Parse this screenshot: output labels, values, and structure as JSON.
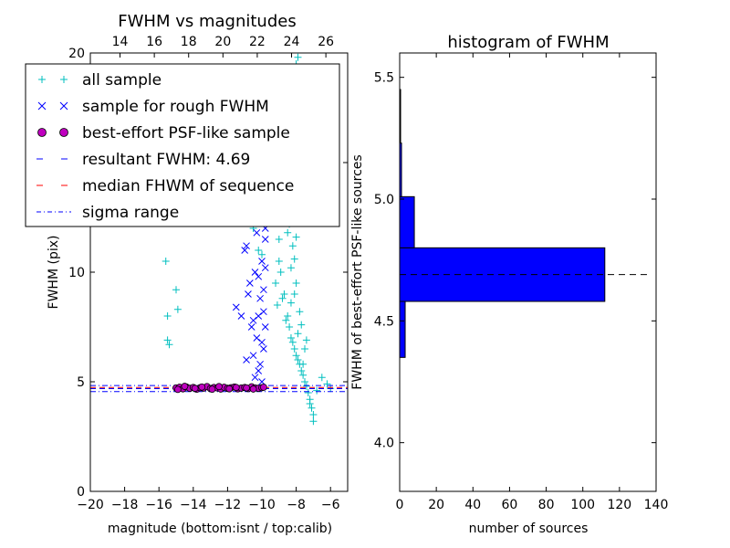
{
  "colors": {
    "all_sample": "#00bfbf",
    "rough_sample": "#0000ff",
    "psf_fill": "#bf00bf",
    "resultant_line": "#0000ff",
    "median_line": "#ff0000",
    "sigma_line": "#0000ff",
    "hist_fill": "#0000ff",
    "hist_median": "#000000"
  },
  "chart_data": [
    {
      "type": "scatter",
      "title": "FWHM vs magnitudes",
      "xlabel": "magnitude (bottom:isnt / top:calib)",
      "ylabel": "FWHM (pix)",
      "xlim": [
        -20,
        -5
      ],
      "ylim": [
        0,
        20
      ],
      "top_xlim": [
        12.27,
        27.27
      ],
      "xticks": [
        -20,
        -18,
        -16,
        -14,
        -12,
        -10,
        -8,
        -6
      ],
      "xtick_labels": [
        "−20",
        "−18",
        "−16",
        "−14",
        "−12",
        "−10",
        "−8",
        "−6"
      ],
      "yticks": [
        0,
        5,
        10,
        15,
        20
      ],
      "ytick_labels": [
        "0",
        "5",
        "10",
        "15",
        "20"
      ],
      "top_xticks": [
        14,
        16,
        18,
        20,
        22,
        24,
        26
      ],
      "top_xtick_labels": [
        "14",
        "16",
        "18",
        "20",
        "22",
        "24",
        "26"
      ],
      "legend_position": "upper-left",
      "legend": [
        {
          "label": "all sample",
          "marker": "plus"
        },
        {
          "label": "sample for rough FWHM",
          "marker": "x"
        },
        {
          "label": "best-effort PSF-like sample",
          "marker": "circle"
        },
        {
          "label": "resultant FWHM: 4.69",
          "marker": "dashed"
        },
        {
          "label": "median FHWM of sequence",
          "marker": "dashed-red"
        },
        {
          "label": "sigma range",
          "marker": "dashdot"
        }
      ],
      "resultant_fwhm": 4.69,
      "median_fwhm": 4.74,
      "sigma_range": [
        4.55,
        4.83
      ],
      "series": [
        {
          "name": "all sample",
          "x": [
            -15.6,
            -15.5,
            -15.5,
            -15.4,
            -15.0,
            -14.9,
            -12.5,
            -12.0,
            -11.8,
            -11.5,
            -11.0,
            -10.5,
            -10.2,
            -10.0,
            -9.8,
            -9.5,
            -9.3,
            -9.0,
            -9.2,
            -9.1,
            -8.9,
            -8.7,
            -8.5,
            -8.4,
            -8.3,
            -8.2,
            -8.1,
            -8.0,
            -7.9,
            -7.8,
            -7.7,
            -7.6,
            -7.5,
            -7.4,
            -7.3,
            -7.2,
            -7.1,
            -7.0,
            -8.6,
            -8.8,
            -9.0,
            -9.4,
            -8.0,
            -7.8,
            -8.2,
            -7.5,
            -8.5,
            -8.3,
            -7.9,
            -8.1,
            -7.6,
            -8.0,
            -7.2,
            -7.0,
            -6.8,
            -6.5,
            -6.2,
            -6.0,
            -7.8,
            -8.0,
            -9.0,
            -8.7,
            -8.9,
            -9.2,
            -8.4,
            -8.6,
            -8.8,
            -7.9,
            -8.0,
            -7.4,
            -7.7,
            -8.3,
            -8.1,
            -8.0,
            -7.9
          ],
          "y": [
            10.5,
            8.0,
            6.9,
            6.7,
            9.2,
            8.3,
            13.0,
            14.5,
            13.2,
            15.0,
            13.5,
            12.0,
            11.0,
            10.8,
            12.5,
            13.8,
            15.5,
            11.5,
            9.5,
            8.5,
            10.0,
            9.0,
            8.0,
            7.5,
            7.0,
            6.8,
            6.5,
            6.2,
            6.0,
            5.8,
            5.5,
            5.3,
            5.0,
            4.8,
            4.5,
            4.2,
            3.8,
            3.5,
            7.8,
            8.8,
            10.5,
            12.8,
            9.5,
            8.2,
            11.2,
            6.5,
            11.8,
            10.2,
            7.2,
            9.0,
            5.8,
            19.0,
            4.0,
            3.2,
            4.6,
            5.2,
            4.9,
            4.7,
            14.0,
            16.0,
            17.5,
            18.5,
            14.8,
            13.0,
            12.2,
            16.8,
            15.2,
            19.8,
            19.5,
            6.9,
            7.6,
            8.6,
            10.6,
            11.6,
            12.6
          ]
        },
        {
          "name": "sample for rough FWHM",
          "x": [
            -11.0,
            -10.9,
            -11.5,
            -10.8,
            -10.5,
            -10.3,
            -10.0,
            -9.8,
            -10.7,
            -10.4,
            -10.2,
            -10.1,
            -9.9,
            -10.6,
            -10.3,
            -10.0,
            -9.8,
            -10.5,
            -10.9,
            -10.2,
            -9.9,
            -10.1,
            -10.4,
            -10.0,
            -9.9,
            -9.8,
            -10.2,
            -10.5,
            -9.8,
            -10.0,
            -11.2,
            -10.8
          ],
          "y": [
            11.0,
            11.2,
            8.4,
            12.5,
            13.0,
            11.8,
            10.5,
            12.0,
            9.5,
            10.0,
            9.8,
            8.8,
            8.2,
            7.5,
            7.0,
            6.8,
            7.5,
            6.2,
            6.0,
            5.5,
            6.5,
            5.8,
            5.2,
            5.0,
            9.2,
            10.2,
            8.0,
            7.8,
            11.5,
            13.5,
            8.0,
            9.0
          ]
        },
        {
          "name": "best-effort PSF-like sample",
          "x": [
            -15.0,
            -14.8,
            -14.6,
            -14.4,
            -14.2,
            -14.0,
            -13.8,
            -13.6,
            -13.4,
            -13.2,
            -13.0,
            -12.8,
            -12.6,
            -12.4,
            -12.2,
            -12.0,
            -11.8,
            -11.6,
            -11.4,
            -11.2,
            -11.0,
            -10.8,
            -10.6,
            -10.4,
            -10.2,
            -10.0,
            -9.9,
            -14.9,
            -14.5,
            -13.9,
            -13.5,
            -12.9,
            -12.5,
            -11.9,
            -11.5,
            -10.9,
            -10.5
          ],
          "y": [
            4.72,
            4.75,
            4.68,
            4.76,
            4.7,
            4.74,
            4.66,
            4.73,
            4.71,
            4.78,
            4.69,
            4.74,
            4.72,
            4.67,
            4.75,
            4.7,
            4.73,
            4.76,
            4.68,
            4.71,
            4.74,
            4.69,
            4.77,
            4.72,
            4.7,
            4.73,
            4.75,
            4.65,
            4.79,
            4.7,
            4.76,
            4.66,
            4.78,
            4.68,
            4.74,
            4.72,
            4.67
          ]
        }
      ]
    },
    {
      "type": "bar",
      "orientation": "horizontal",
      "title": "histogram of FWHM",
      "xlabel": "number of sources",
      "ylabel": "FWHM of best-effort PSF-like sources",
      "xlim": [
        0,
        140
      ],
      "ylim": [
        3.8,
        5.6
      ],
      "xticks": [
        0,
        20,
        40,
        60,
        80,
        100,
        120,
        140
      ],
      "xtick_labels": [
        "0",
        "20",
        "40",
        "60",
        "80",
        "100",
        "120",
        "140"
      ],
      "yticks": [
        4.0,
        4.5,
        5.0,
        5.5
      ],
      "ytick_labels": [
        "4.0",
        "4.5",
        "5.0",
        "5.5"
      ],
      "bins": [
        {
          "y0": 4.35,
          "y1": 4.58,
          "count": 3
        },
        {
          "y0": 4.58,
          "y1": 4.8,
          "count": 112
        },
        {
          "y0": 4.8,
          "y1": 5.01,
          "count": 8
        },
        {
          "y0": 5.01,
          "y1": 5.23,
          "count": 1
        },
        {
          "y0": 5.23,
          "y1": 5.45,
          "count": 0.5
        }
      ],
      "median_line": {
        "y": 4.69,
        "x_range": [
          0,
          135
        ]
      }
    }
  ]
}
